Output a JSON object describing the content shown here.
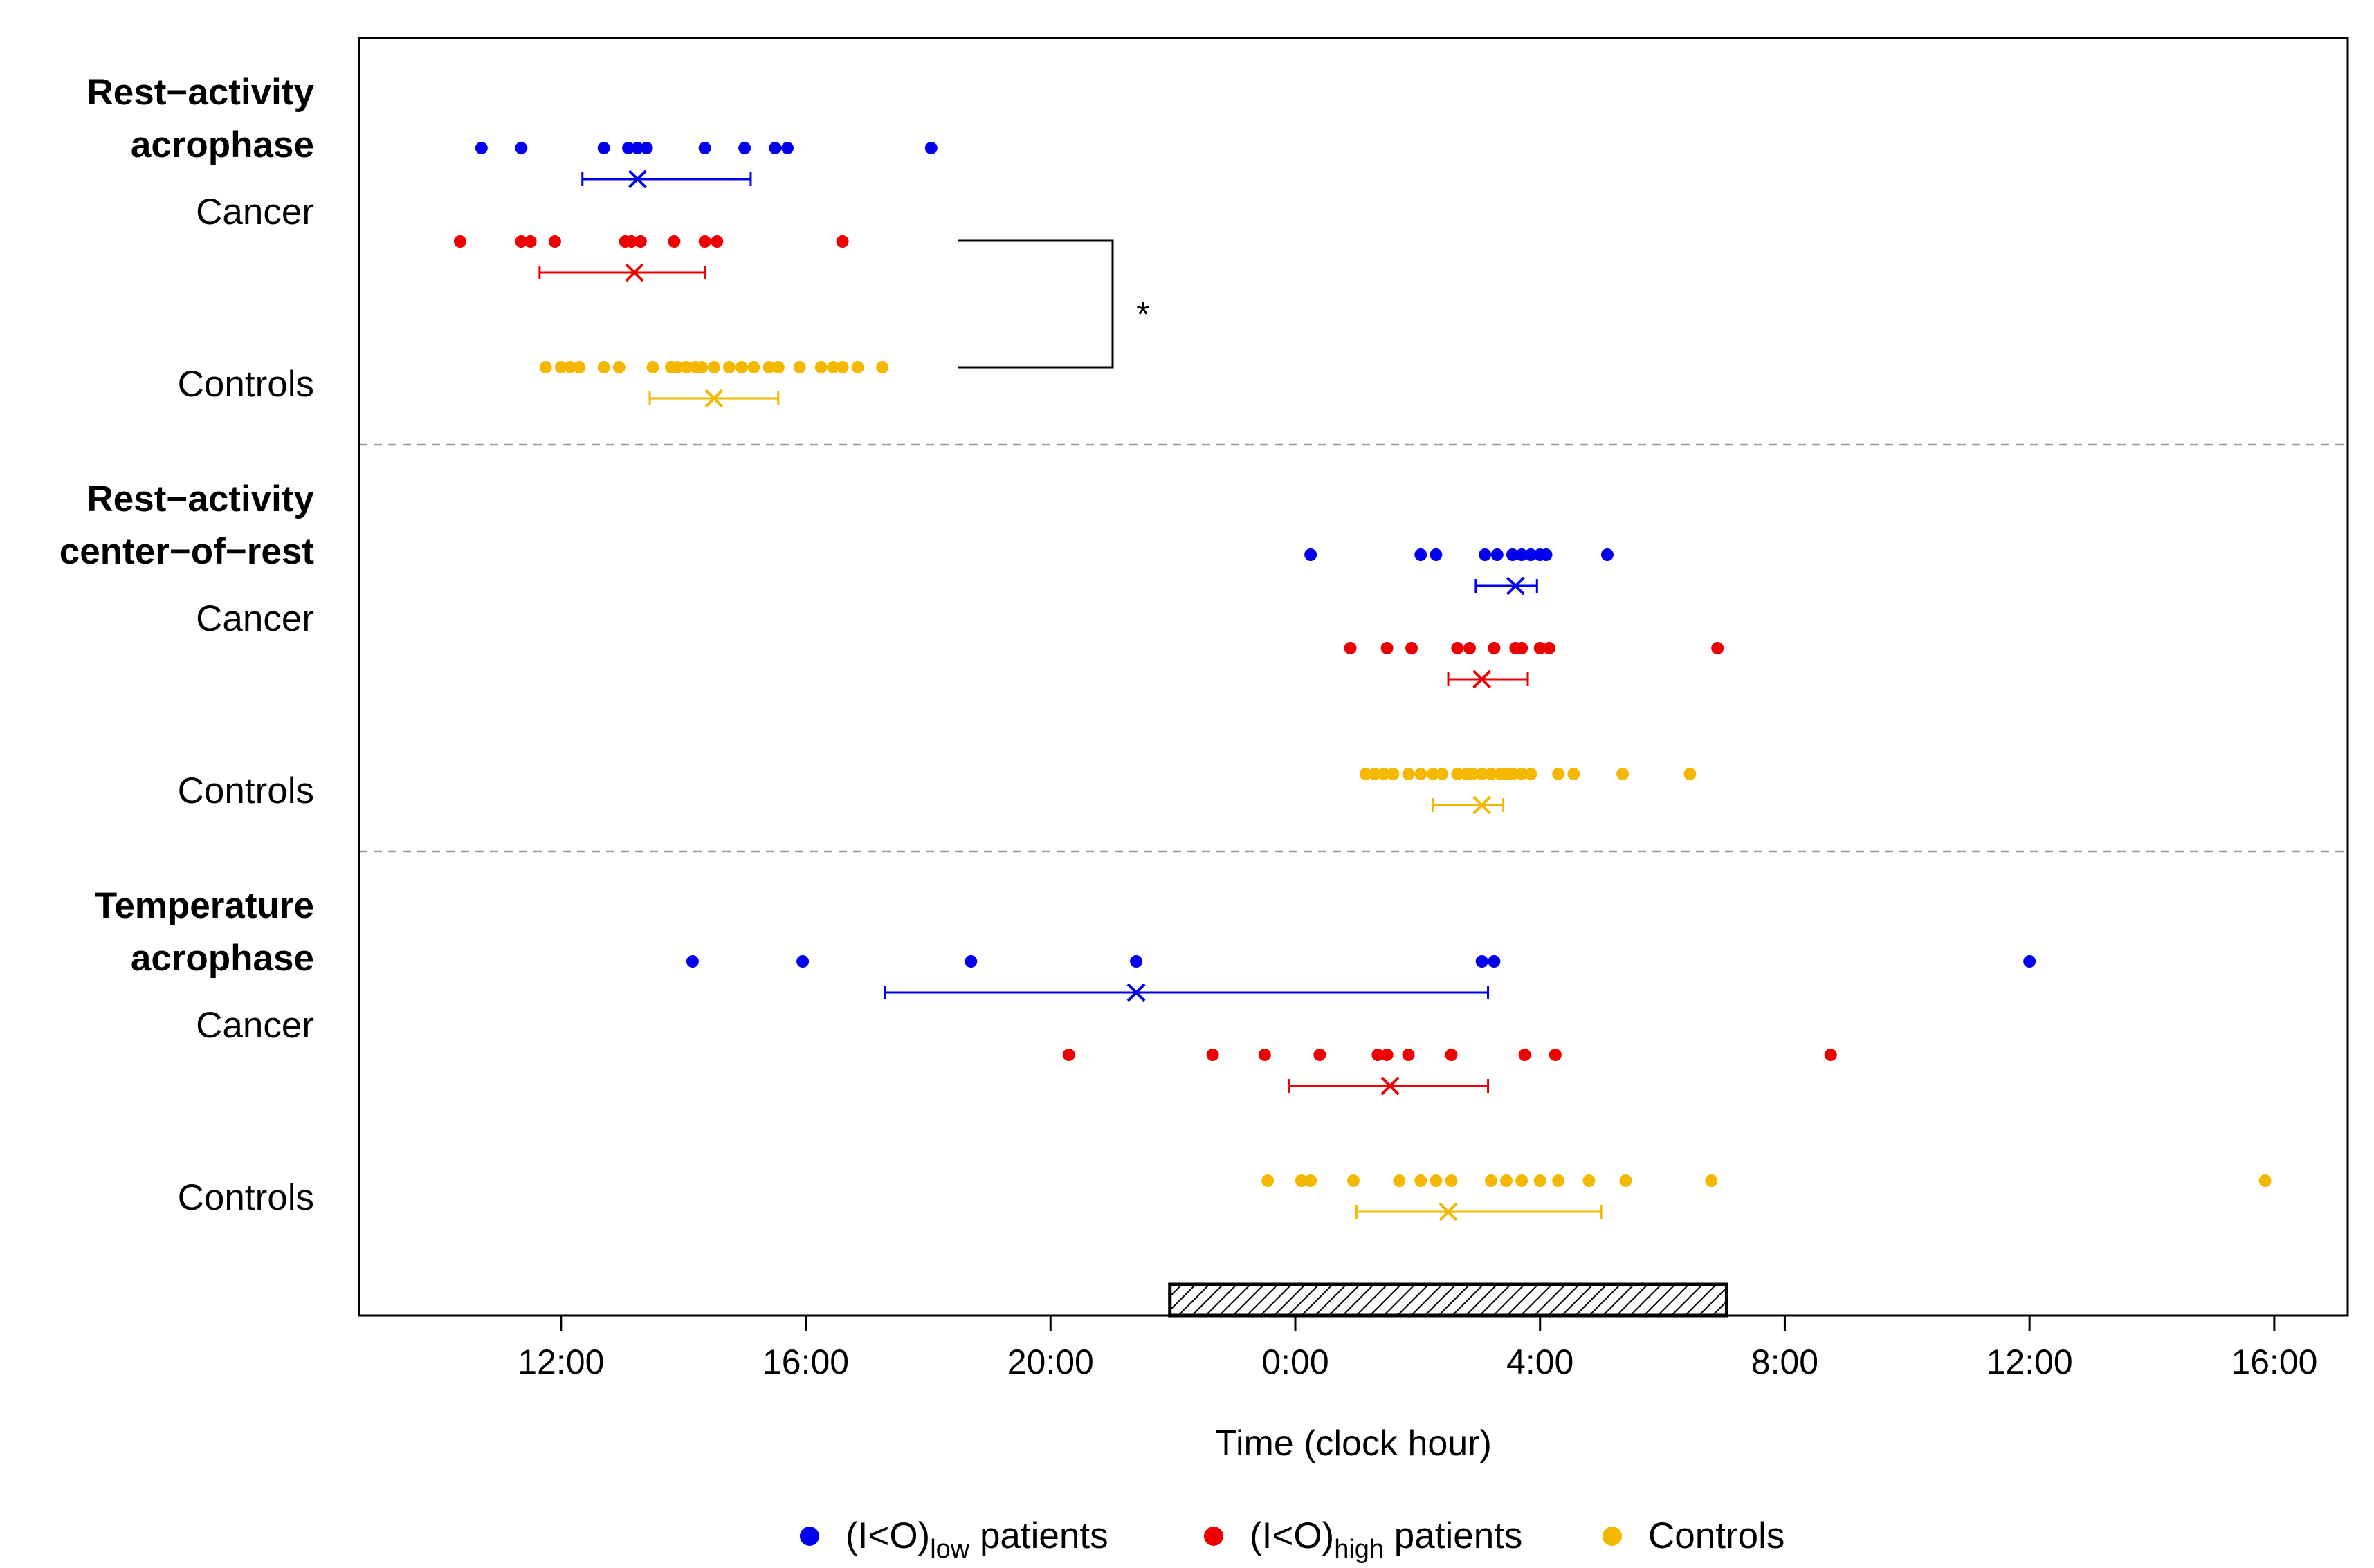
{
  "chart_data": {
    "type": "scatter",
    "xlabel": "Time (clock hour)",
    "xlim": [
      8.7,
      41.2
    ],
    "x_ticks": [
      {
        "value": 12,
        "label": "12:00"
      },
      {
        "value": 16,
        "label": "16:00"
      },
      {
        "value": 20,
        "label": "20:00"
      },
      {
        "value": 24,
        "label": "0:00"
      },
      {
        "value": 28,
        "label": "4:00"
      },
      {
        "value": 32,
        "label": "8:00"
      },
      {
        "value": 36,
        "label": "12:00"
      },
      {
        "value": 40,
        "label": "16:00"
      }
    ],
    "night_bar": {
      "start": 21.95,
      "end": 31.05
    },
    "colors": {
      "low": "#0000ee",
      "high": "#ee0000",
      "controls": "#f5b800",
      "axis": "#000000",
      "divider": "#999999"
    },
    "legend": [
      {
        "key": "low",
        "prefix": "(I<O)",
        "sub": "low",
        "suffix": " patients"
      },
      {
        "key": "high",
        "prefix": "(I<O)",
        "sub": "high",
        "suffix": " patients"
      },
      {
        "key": "controls",
        "prefix": "Controls",
        "sub": "",
        "suffix": ""
      }
    ],
    "panels": [
      {
        "title_lines": [
          "Rest−activity",
          "acrophase"
        ],
        "cancer_label": "Cancer",
        "controls_label": "Controls",
        "significance": "*",
        "groups": [
          {
            "key": "low",
            "points": [
              10.7,
              11.35,
              12.7,
              13.1,
              13.25,
              13.4,
              14.35,
              15.0,
              15.5,
              15.7,
              18.05
            ],
            "mean": 13.25,
            "ci": [
              12.35,
              15.1
            ]
          },
          {
            "key": "high",
            "points": [
              10.35,
              11.35,
              11.5,
              11.9,
              13.05,
              13.15,
              13.3,
              13.85,
              14.35,
              14.55,
              16.6
            ],
            "mean": 13.2,
            "ci": [
              11.65,
              14.35
            ]
          },
          {
            "key": "controls",
            "points": [
              11.75,
              12.0,
              12.15,
              12.3,
              12.7,
              12.95,
              13.5,
              13.8,
              13.9,
              14.05,
              14.2,
              14.3,
              14.5,
              14.75,
              14.95,
              15.15,
              15.4,
              15.55,
              15.9,
              16.25,
              16.45,
              16.6,
              16.85,
              17.25
            ],
            "mean": 14.5,
            "ci": [
              13.45,
              15.55
            ]
          }
        ]
      },
      {
        "title_lines": [
          "Rest−activity",
          "center−of−rest"
        ],
        "cancer_label": "Cancer",
        "controls_label": "Controls",
        "significance": "",
        "groups": [
          {
            "key": "low",
            "points": [
              24.25,
              26.05,
              26.3,
              27.1,
              27.3,
              27.55,
              27.7,
              27.85,
              28.0,
              28.1,
              29.1
            ],
            "mean": 27.6,
            "ci": [
              26.95,
              27.95
            ]
          },
          {
            "key": "high",
            "points": [
              24.9,
              25.5,
              25.9,
              26.65,
              26.85,
              27.25,
              27.6,
              27.7,
              28.0,
              28.15,
              30.9
            ],
            "mean": 27.05,
            "ci": [
              26.5,
              27.8
            ]
          },
          {
            "key": "controls",
            "points": [
              25.15,
              25.3,
              25.45,
              25.6,
              25.85,
              26.05,
              26.25,
              26.4,
              26.65,
              26.8,
              26.9,
              27.05,
              27.2,
              27.35,
              27.45,
              27.55,
              27.7,
              27.85,
              28.3,
              28.55,
              29.35,
              30.45
            ],
            "mean": 27.05,
            "ci": [
              26.25,
              27.4
            ]
          }
        ]
      },
      {
        "title_lines": [
          "Temperature",
          "acrophase"
        ],
        "cancer_label": "Cancer",
        "controls_label": "Controls",
        "significance": "",
        "groups": [
          {
            "key": "low",
            "points": [
              14.15,
              15.95,
              18.7,
              21.4,
              27.05,
              27.25,
              36.0
            ],
            "mean": 21.4,
            "ci": [
              17.3,
              27.15
            ]
          },
          {
            "key": "high",
            "points": [
              20.3,
              22.65,
              23.5,
              24.4,
              25.35,
              25.5,
              25.85,
              26.55,
              27.75,
              28.25,
              32.75
            ],
            "mean": 25.55,
            "ci": [
              23.9,
              27.15
            ]
          },
          {
            "key": "controls",
            "points": [
              23.55,
              24.1,
              24.25,
              24.95,
              25.7,
              26.05,
              26.3,
              26.55,
              27.2,
              27.45,
              27.7,
              28.0,
              28.3,
              28.8,
              29.4,
              30.8,
              39.85
            ],
            "mean": 26.5,
            "ci": [
              25.0,
              29.0
            ]
          }
        ]
      }
    ]
  }
}
